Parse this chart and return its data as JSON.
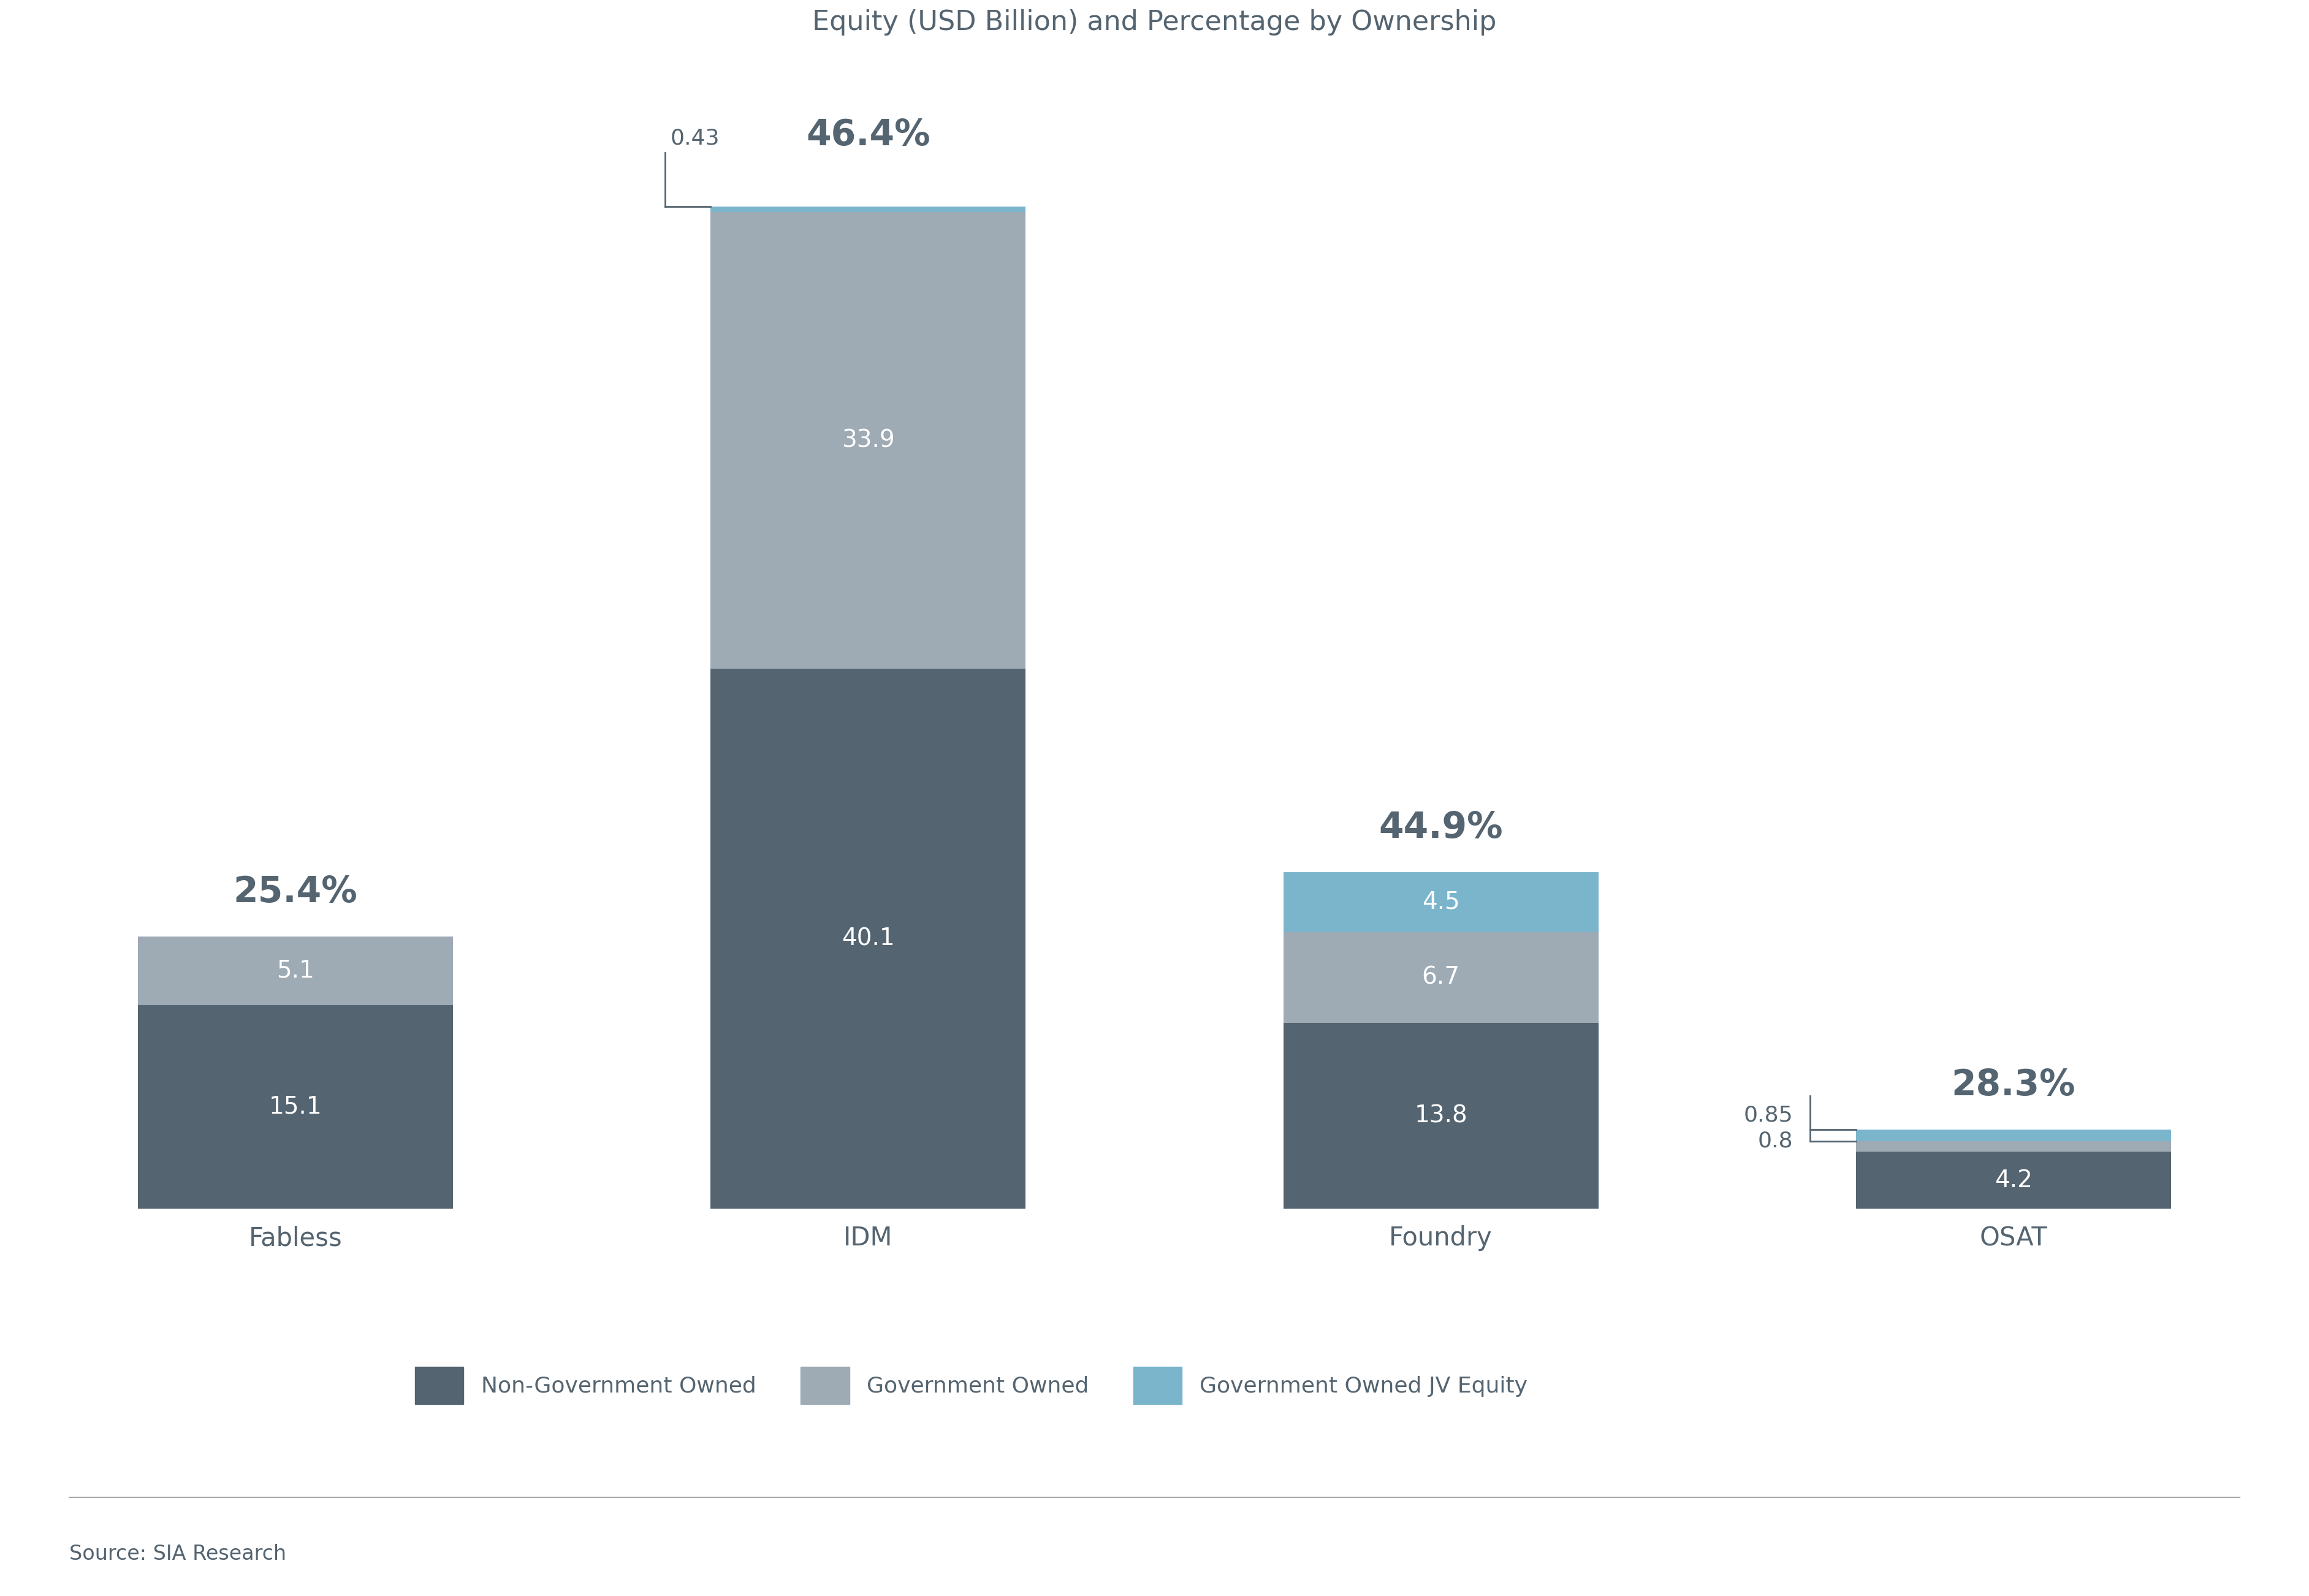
{
  "title": "Equity (USD Billion) and Percentage by Ownership",
  "categories": [
    "Fabless",
    "IDM",
    "Foundry",
    "OSAT"
  ],
  "non_gov": [
    15.1,
    40.1,
    13.8,
    4.2
  ],
  "gov_owned": [
    5.1,
    33.9,
    6.7,
    0.8
  ],
  "gov_jv": [
    0.0,
    0.43,
    4.5,
    0.85
  ],
  "percentages": [
    "25.4%",
    "46.4%",
    "44.9%",
    "28.3%"
  ],
  "color_non_gov": "#546470",
  "color_gov": "#9eaab4",
  "color_jv": "#7ab5cc",
  "background": "#ffffff",
  "text_color_dark": "#546470",
  "text_color_white": "#ffffff",
  "bar_width": 0.55,
  "x_positions": [
    0,
    1,
    2,
    3
  ],
  "legend_labels": [
    "Non-Government Owned",
    "Government Owned",
    "Government Owned JV Equity"
  ],
  "source": "Source: SIA Research",
  "title_fontsize": 32,
  "pct_fontsize": 42,
  "label_fontsize": 30,
  "bar_label_fontsize": 28,
  "small_label_fontsize": 26,
  "legend_fontsize": 26,
  "source_fontsize": 24,
  "ylim_max": 85
}
